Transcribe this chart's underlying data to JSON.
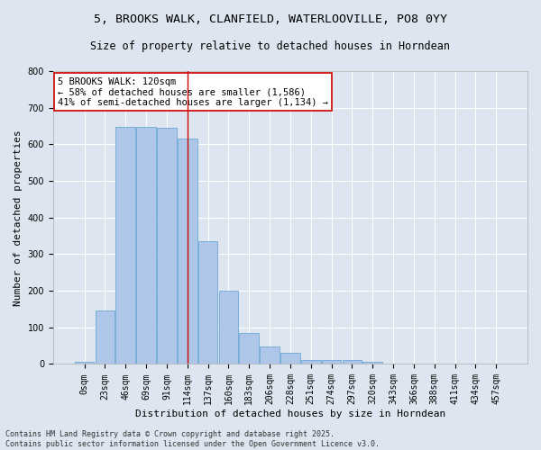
{
  "title_line1": "5, BROOKS WALK, CLANFIELD, WATERLOOVILLE, PO8 0YY",
  "title_line2": "Size of property relative to detached houses in Horndean",
  "xlabel": "Distribution of detached houses by size in Horndean",
  "ylabel": "Number of detached properties",
  "categories": [
    "0sqm",
    "23sqm",
    "46sqm",
    "69sqm",
    "91sqm",
    "114sqm",
    "137sqm",
    "160sqm",
    "183sqm",
    "206sqm",
    "228sqm",
    "251sqm",
    "274sqm",
    "297sqm",
    "320sqm",
    "343sqm",
    "366sqm",
    "388sqm",
    "411sqm",
    "434sqm",
    "457sqm"
  ],
  "values": [
    5,
    145,
    648,
    648,
    645,
    615,
    335,
    200,
    85,
    47,
    30,
    10,
    12,
    12,
    5,
    0,
    0,
    0,
    0,
    0,
    2
  ],
  "bar_color": "#aec6e8",
  "bar_edge_color": "#5a9fd4",
  "vline_x": 5,
  "vline_color": "#cc0000",
  "annotation_text": "5 BROOKS WALK: 120sqm\n← 58% of detached houses are smaller (1,586)\n41% of semi-detached houses are larger (1,134) →",
  "annotation_box_color": "#ffffff",
  "annotation_box_edge": "#cc0000",
  "bg_color": "#dde6f0",
  "plot_bg_color": "#dde6f0",
  "footer_line1": "Contains HM Land Registry data © Crown copyright and database right 2025.",
  "footer_line2": "Contains public sector information licensed under the Open Government Licence v3.0.",
  "ylim": [
    0,
    800
  ],
  "yticks": [
    0,
    100,
    200,
    300,
    400,
    500,
    600,
    700,
    800
  ],
  "title_fontsize": 9.5,
  "subtitle_fontsize": 8.5,
  "axis_label_fontsize": 8,
  "tick_fontsize": 7,
  "annotation_fontsize": 7.5,
  "footer_fontsize": 6
}
